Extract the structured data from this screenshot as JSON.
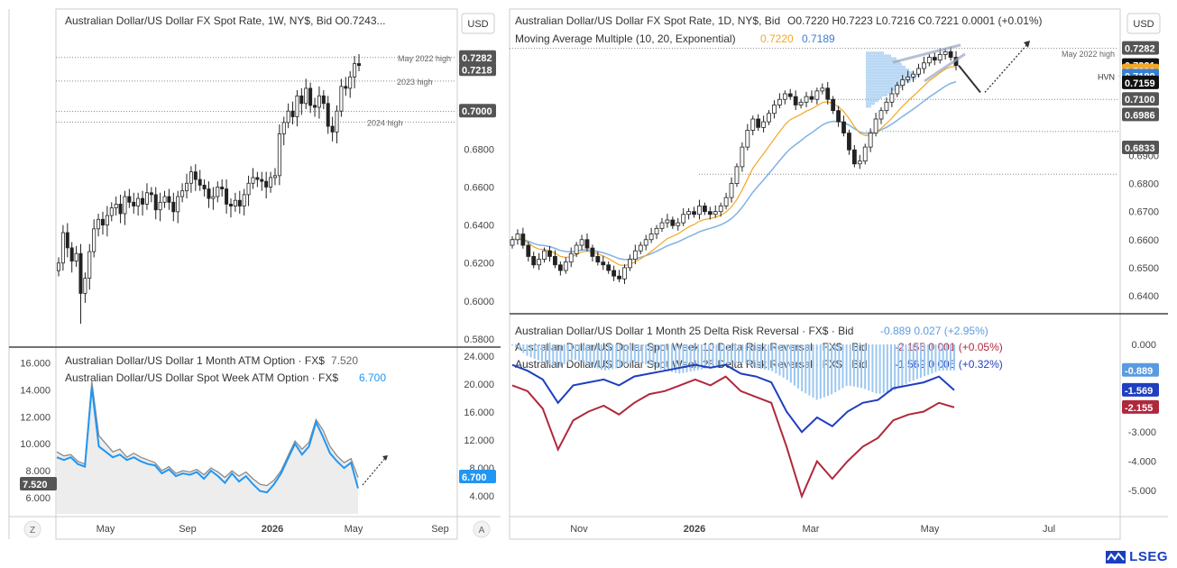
{
  "colors": {
    "up": "#222222",
    "down": "#222222",
    "ma10": "#f5a623",
    "ma20": "#7fb2e5",
    "blue_rr": "#1f3fbf",
    "red_rr": "#b0283c",
    "hist": "#9cc7f0",
    "atm1m": "#8a8a8a",
    "atmsw": "#2196f3",
    "dotted": "#888888"
  },
  "left_top": {
    "title": "Australian Dollar/US Dollar FX Spot Rate, 1W, NY$, Bid  O0.7243...",
    "currency": "USD",
    "annotations": [
      "May 2022 high",
      "2023 high",
      "2024 high"
    ],
    "price_tags": [
      "0.7282",
      "0.7218",
      "0.7000"
    ],
    "ticks": [
      "0.6800",
      "0.6600",
      "0.6400",
      "0.6200",
      "0.6000",
      "0.5800"
    ]
  },
  "left_bottom": {
    "legend_1m": "Australian Dollar/US Dollar 1 Month ATM Option · FX$",
    "legend_1m_value": "7.520",
    "legend_sw": "Australian Dollar/US Dollar Spot Week ATM Option · FX$",
    "legend_sw_value": "6.700",
    "left_ticks": [
      "16.000",
      "14.000",
      "12.000",
      "10.000",
      "8.000",
      "6.000"
    ],
    "right_ticks": [
      "24.000",
      "20.000",
      "16.000",
      "12.000",
      "8.000",
      "4.000"
    ],
    "tag_1m": "7.520",
    "tag_sw": "6.700",
    "x_ticks": [
      "May",
      "Sep",
      "2026",
      "May",
      "Sep"
    ],
    "btn_z": "Z",
    "btn_a": "A"
  },
  "right_top": {
    "title": "Australian Dollar/US Dollar FX Spot Rate, 1D, NY$, Bid",
    "ohlc": "O0.7220  H0.7223  L0.7216  C0.7221  0.0001  (+0.01%)",
    "ma_label": "Moving Average Multiple (10, 20, Exponential)",
    "ma_v1": "0.7220",
    "ma_v2": "0.7189",
    "currency": "USD",
    "annotations": [
      "May 2022 high",
      "HVN"
    ],
    "price_tags": [
      "0.7282",
      "0.7221",
      "0.7220",
      "0.7189",
      "0.7159",
      "0.7100",
      "0.6986",
      "0.6833"
    ],
    "ticks": [
      "0.7300",
      "0.6900",
      "0.6800",
      "0.6700",
      "0.6600",
      "0.6500",
      "0.6400"
    ]
  },
  "right_bottom": {
    "legend_1": "Australian Dollar/US Dollar 1 Month 25 Delta Risk Reversal · FX$ · Bid",
    "legend_1_vals": "-0.889  0.027  (+2.95%)",
    "legend_2": "Australian Dollar/US Dollar Spot Week 10 Delta Risk Reversal · FX$ · Bid",
    "legend_2_vals": "-2.155  0.001  (+0.05%)",
    "legend_3": "Australian Dollar/US Dollar Spot Week 25 Delta Risk Reversal · FX$ · Bid",
    "legend_3_vals": "-1.569  0.005  (+0.32%)",
    "ticks": [
      "0.000",
      "-3.000",
      "-4.000",
      "-5.000"
    ],
    "tags": [
      "-0.889",
      "-1.569",
      "-2.155"
    ],
    "x_ticks": [
      "Nov",
      "2026",
      "Mar",
      "May",
      "Jul"
    ]
  },
  "brand": "LSEG",
  "chart_data": [
    {
      "type": "candlestick",
      "title": "Australian Dollar/US Dollar FX Spot Rate, 1W, NY$, Bid",
      "ylim": [
        0.575,
        0.735
      ],
      "x_ticks": [
        "May",
        "Sep",
        "2026",
        "May",
        "Sep"
      ],
      "annotations": [
        {
          "label": "May 2022 high",
          "y": 0.7282
        },
        {
          "label": "2023 high",
          "y": 0.7158
        },
        {
          "label": "2024 high",
          "y": 0.6942
        }
      ],
      "close": [
        0.62,
        0.636,
        0.628,
        0.621,
        0.625,
        0.604,
        0.612,
        0.626,
        0.638,
        0.643,
        0.64,
        0.645,
        0.649,
        0.651,
        0.646,
        0.655,
        0.652,
        0.65,
        0.654,
        0.651,
        0.657,
        0.656,
        0.648,
        0.652,
        0.655,
        0.652,
        0.647,
        0.655,
        0.658,
        0.662,
        0.668,
        0.664,
        0.661,
        0.659,
        0.654,
        0.655,
        0.66,
        0.659,
        0.651,
        0.65,
        0.653,
        0.65,
        0.656,
        0.662,
        0.665,
        0.664,
        0.663,
        0.66,
        0.665,
        0.666,
        0.688,
        0.694,
        0.7,
        0.697,
        0.708,
        0.704,
        0.712,
        0.703,
        0.702,
        0.708,
        0.704,
        0.692,
        0.689,
        0.7,
        0.713,
        0.712,
        0.718,
        0.725,
        0.724
      ]
    },
    {
      "type": "line",
      "title": "",
      "series": [
        {
          "name": "Australian Dollar/US Dollar 1 Month ATM Option · FX$",
          "values": [
            9.4,
            9.1,
            9.2,
            8.7,
            8.5,
            14.6,
            10.6,
            10.0,
            9.4,
            9.6,
            9.0,
            9.3,
            9.0,
            8.8,
            8.6,
            8.0,
            8.3,
            7.8,
            8.0,
            7.9,
            8.1,
            7.7,
            8.2,
            7.9,
            7.5,
            8.0,
            7.6,
            7.9,
            7.4,
            7.0,
            6.9,
            7.3,
            8.0,
            9.1,
            10.2,
            9.6,
            10.1,
            11.8,
            11.0,
            9.8,
            9.1,
            8.6,
            8.9,
            7.5
          ]
        },
        {
          "name": "Australian Dollar/US Dollar Spot Week ATM Option · FX$",
          "values": [
            9.0,
            8.8,
            9.0,
            8.5,
            8.3,
            14.2,
            9.8,
            9.4,
            9.0,
            9.2,
            8.8,
            9.0,
            8.7,
            8.5,
            8.4,
            7.8,
            8.1,
            7.6,
            7.8,
            7.7,
            7.9,
            7.4,
            8.0,
            7.6,
            7.1,
            7.8,
            7.2,
            7.6,
            7.0,
            6.5,
            6.4,
            7.0,
            7.8,
            8.9,
            10.0,
            9.2,
            9.8,
            11.6,
            10.5,
            9.3,
            8.7,
            8.2,
            8.6,
            6.7
          ]
        }
      ],
      "ylim": [
        5.0,
        16.5
      ],
      "x_ticks": [
        "May",
        "Sep",
        "2026",
        "May",
        "Sep"
      ]
    },
    {
      "type": "candlestick",
      "title": "Australian Dollar/US Dollar FX Spot Rate, 1D, NY$, Bid",
      "ylim": [
        0.633,
        0.733
      ],
      "x_ticks": [
        "Nov",
        "2026",
        "Mar",
        "May",
        "Jul"
      ],
      "annotations": [
        {
          "label": "May 2022 high",
          "y": 0.7282
        },
        {
          "label": "HVN",
          "y": 0.7183
        }
      ],
      "series": [
        {
          "name": "Moving Average Multiple (10, 20, Exponential)",
          "values": [
            0.722,
            0.7189
          ]
        }
      ],
      "close": [
        0.66,
        0.662,
        0.658,
        0.654,
        0.651,
        0.653,
        0.656,
        0.654,
        0.651,
        0.649,
        0.652,
        0.655,
        0.658,
        0.66,
        0.657,
        0.654,
        0.652,
        0.651,
        0.649,
        0.647,
        0.646,
        0.65,
        0.653,
        0.656,
        0.658,
        0.66,
        0.662,
        0.664,
        0.666,
        0.667,
        0.665,
        0.666,
        0.669,
        0.67,
        0.669,
        0.672,
        0.67,
        0.669,
        0.67,
        0.672,
        0.675,
        0.68,
        0.686,
        0.693,
        0.699,
        0.703,
        0.7,
        0.702,
        0.705,
        0.708,
        0.71,
        0.712,
        0.711,
        0.708,
        0.709,
        0.711,
        0.71,
        0.713,
        0.714,
        0.71,
        0.706,
        0.702,
        0.698,
        0.692,
        0.687,
        0.688,
        0.693,
        0.698,
        0.703,
        0.706,
        0.709,
        0.712,
        0.715,
        0.717,
        0.718,
        0.719,
        0.721,
        0.723,
        0.725,
        0.724,
        0.726,
        0.727,
        0.725,
        0.7221
      ],
      "forecast": [
        0.7221,
        0.7175,
        0.73
      ]
    },
    {
      "type": "line",
      "title": "",
      "series": [
        {
          "name": "Australian Dollar/US Dollar 1 Month 25 Delta Risk Reversal · FX$ · Bid",
          "values": [
            0.0,
            -0.4,
            -0.6,
            -0.8,
            -0.5,
            -0.7,
            -0.9,
            -0.8,
            -0.6,
            -0.7,
            -0.9,
            -1.0,
            -0.9,
            -0.8,
            -0.7,
            -0.6,
            -0.8,
            -0.9,
            -1.2,
            -1.6,
            -1.9,
            -1.7,
            -1.4,
            -1.5,
            -1.7,
            -1.6,
            -1.3,
            -1.1,
            -0.9,
            -0.889
          ]
        },
        {
          "name": "Australian Dollar/US Dollar Spot Week 10 Delta Risk Reversal · FX$ · Bid",
          "values": [
            -1.4,
            -1.6,
            -2.2,
            -3.6,
            -2.6,
            -2.3,
            -2.1,
            -2.4,
            -2.0,
            -1.7,
            -1.6,
            -1.4,
            -1.2,
            -1.4,
            -1.1,
            -1.6,
            -1.8,
            -2.0,
            -3.5,
            -5.2,
            -4.0,
            -4.6,
            -4.0,
            -3.5,
            -3.2,
            -2.6,
            -2.4,
            -2.3,
            -2.0,
            -2.155
          ]
        },
        {
          "name": "Australian Dollar/US Dollar Spot Week 25 Delta Risk Reversal · FX$ · Bid",
          "values": [
            -0.7,
            -0.9,
            -1.2,
            -2.0,
            -1.4,
            -1.3,
            -1.2,
            -1.4,
            -1.1,
            -1.0,
            -0.9,
            -0.8,
            -0.7,
            -0.8,
            -0.7,
            -1.0,
            -1.1,
            -1.3,
            -2.3,
            -3.0,
            -2.5,
            -2.8,
            -2.3,
            -2.0,
            -1.9,
            -1.5,
            -1.4,
            -1.3,
            -1.1,
            -1.569
          ]
        }
      ],
      "ylim": [
        -5.5,
        0.5
      ],
      "x_ticks": [
        "Nov",
        "2026",
        "Mar",
        "May",
        "Jul"
      ]
    }
  ]
}
